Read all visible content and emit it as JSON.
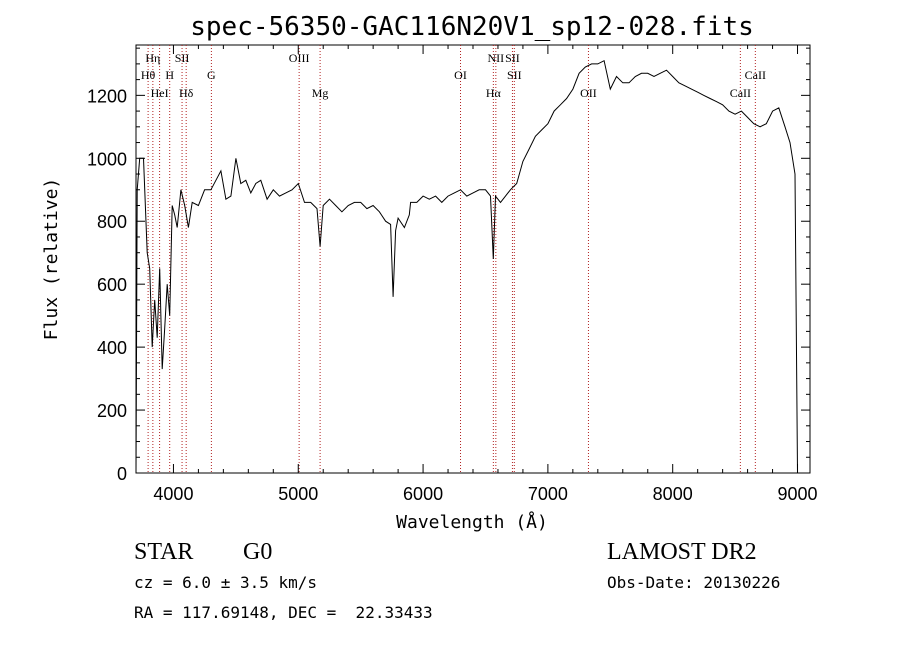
{
  "chart_data": {
    "type": "line",
    "title": "spec-56350-GAC116N20V1_sp12-028.fits",
    "xlabel": "Wavelength (Å)",
    "ylabel": "Flux (relative)",
    "xlim": [
      3700,
      9100
    ],
    "ylim": [
      0,
      1360
    ],
    "xticks": [
      4000,
      5000,
      6000,
      7000,
      8000,
      9000
    ],
    "yticks": [
      0,
      200,
      400,
      600,
      800,
      1000,
      1200
    ],
    "grid": false,
    "line_color": "#000000",
    "marker_color": "#b22222",
    "series": [
      {
        "x": [
          3700,
          3710,
          3730,
          3760,
          3790,
          3810,
          3830,
          3850,
          3870,
          3890,
          3910,
          3930,
          3950,
          3970,
          3990,
          4010,
          4030,
          4060,
          4090,
          4120,
          4150,
          4200,
          4250,
          4300,
          4340,
          4380,
          4420,
          4460,
          4500,
          4540,
          4580,
          4620,
          4660,
          4700,
          4750,
          4800,
          4850,
          4900,
          4950,
          5000,
          5050,
          5100,
          5150,
          5175,
          5200,
          5250,
          5300,
          5350,
          5400,
          5450,
          5500,
          5550,
          5600,
          5650,
          5700,
          5740,
          5760,
          5780,
          5800,
          5850,
          5890,
          5900,
          5950,
          6000,
          6050,
          6100,
          6150,
          6200,
          6250,
          6300,
          6350,
          6400,
          6450,
          6500,
          6540,
          6563,
          6580,
          6620,
          6660,
          6700,
          6750,
          6800,
          6850,
          6900,
          6950,
          7000,
          7050,
          7100,
          7150,
          7200,
          7250,
          7300,
          7350,
          7400,
          7450,
          7500,
          7550,
          7600,
          7650,
          7700,
          7750,
          7800,
          7850,
          7900,
          7950,
          8000,
          8050,
          8100,
          8150,
          8200,
          8250,
          8300,
          8350,
          8400,
          8450,
          8500,
          8550,
          8600,
          8650,
          8700,
          8750,
          8800,
          8850,
          8900,
          8940,
          8960,
          8980,
          9000
        ],
        "y": [
          0,
          900,
          1000,
          1000,
          700,
          650,
          400,
          550,
          430,
          650,
          330,
          460,
          600,
          500,
          850,
          820,
          780,
          900,
          850,
          780,
          860,
          850,
          900,
          900,
          930,
          960,
          870,
          880,
          1000,
          920,
          930,
          890,
          920,
          930,
          870,
          900,
          880,
          890,
          900,
          920,
          860,
          860,
          840,
          720,
          850,
          870,
          850,
          830,
          850,
          860,
          860,
          840,
          850,
          830,
          800,
          790,
          560,
          770,
          810,
          780,
          820,
          860,
          860,
          880,
          870,
          880,
          860,
          880,
          890,
          900,
          880,
          890,
          900,
          900,
          880,
          680,
          880,
          860,
          880,
          900,
          920,
          990,
          1030,
          1070,
          1090,
          1110,
          1150,
          1170,
          1190,
          1220,
          1270,
          1290,
          1300,
          1300,
          1310,
          1220,
          1260,
          1240,
          1240,
          1260,
          1270,
          1270,
          1260,
          1270,
          1280,
          1260,
          1240,
          1230,
          1220,
          1210,
          1200,
          1190,
          1180,
          1170,
          1150,
          1140,
          1150,
          1130,
          1110,
          1100,
          1110,
          1150,
          1160,
          1100,
          1050,
          1000,
          950,
          0
        ]
      }
    ],
    "lines": [
      {
        "label": "Hη",
        "x": 3835,
        "row": 0
      },
      {
        "label": "Hθ",
        "x": 3797,
        "row": 1
      },
      {
        "label": "HeI",
        "x": 3889,
        "row": 2
      },
      {
        "label": "SII",
        "x": 4069,
        "row": 0
      },
      {
        "label": "H",
        "x": 3970,
        "row": 1
      },
      {
        "label": "Hδ",
        "x": 4102,
        "row": 2
      },
      {
        "label": "G",
        "x": 4304,
        "row": 1
      },
      {
        "label": "OIII",
        "x": 5007,
        "row": 0
      },
      {
        "label": "Mg",
        "x": 5175,
        "row": 2
      },
      {
        "label": "OI",
        "x": 6300,
        "row": 1
      },
      {
        "label": "NII",
        "x": 6583,
        "row": 0
      },
      {
        "label": "SII",
        "x": 6716,
        "row": 0
      },
      {
        "label": "Hα",
        "x": 6563,
        "row": 2
      },
      {
        "label": "SII",
        "x": 6731,
        "row": 1
      },
      {
        "label": "OII",
        "x": 7325,
        "row": 2
      },
      {
        "label": "CaII",
        "x": 8662,
        "row": 1
      },
      {
        "label": "CaII",
        "x": 8542,
        "row": 2
      }
    ]
  },
  "info": {
    "class": "STAR",
    "subclass": "G0",
    "survey": "LAMOST DR2",
    "cz": "cz = 6.0 ± 3.5 km/s",
    "obs_date": "Obs-Date: 20130226",
    "radec": "RA = 117.69148, DEC =  22.33433"
  }
}
